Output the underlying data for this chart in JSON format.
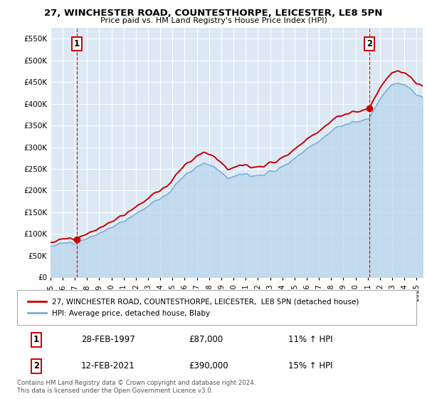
{
  "title": "27, WINCHESTER ROAD, COUNTESTHORPE, LEICESTER, LE8 5PN",
  "subtitle": "Price paid vs. HM Land Registry's House Price Index (HPI)",
  "background_color": "#dce9f5",
  "ylim": [
    0,
    575000
  ],
  "yticks": [
    0,
    50000,
    100000,
    150000,
    200000,
    250000,
    300000,
    350000,
    400000,
    450000,
    500000,
    550000
  ],
  "ytick_labels": [
    "£0",
    "£50K",
    "£100K",
    "£150K",
    "£200K",
    "£250K",
    "£300K",
    "£350K",
    "£400K",
    "£450K",
    "£500K",
    "£550K"
  ],
  "sale1_date_num": 1997.15,
  "sale1_price": 87000,
  "sale1_label": "1",
  "sale2_date_num": 2021.12,
  "sale2_price": 390000,
  "sale2_label": "2",
  "property_color": "#cc0000",
  "hpi_color": "#7aadd4",
  "hpi_fill_color": "#b8d4ea",
  "legend_property": "27, WINCHESTER ROAD, COUNTESTHORPE, LEICESTER,  LE8 5PN (detached house)",
  "legend_hpi": "HPI: Average price, detached house, Blaby",
  "table_rows": [
    [
      "1",
      "28-FEB-1997",
      "£87,000",
      "11% ↑ HPI"
    ],
    [
      "2",
      "12-FEB-2021",
      "£390,000",
      "15% ↑ HPI"
    ]
  ],
  "footer": "Contains HM Land Registry data © Crown copyright and database right 2024.\nThis data is licensed under the Open Government Licence v3.0.",
  "xmin": 1995.0,
  "xmax": 2025.5,
  "xtick_years": [
    1995,
    1996,
    1997,
    1998,
    1999,
    2000,
    2001,
    2002,
    2003,
    2004,
    2005,
    2006,
    2007,
    2008,
    2009,
    2010,
    2011,
    2012,
    2013,
    2014,
    2015,
    2016,
    2017,
    2018,
    2019,
    2020,
    2021,
    2022,
    2023,
    2024,
    2025
  ]
}
